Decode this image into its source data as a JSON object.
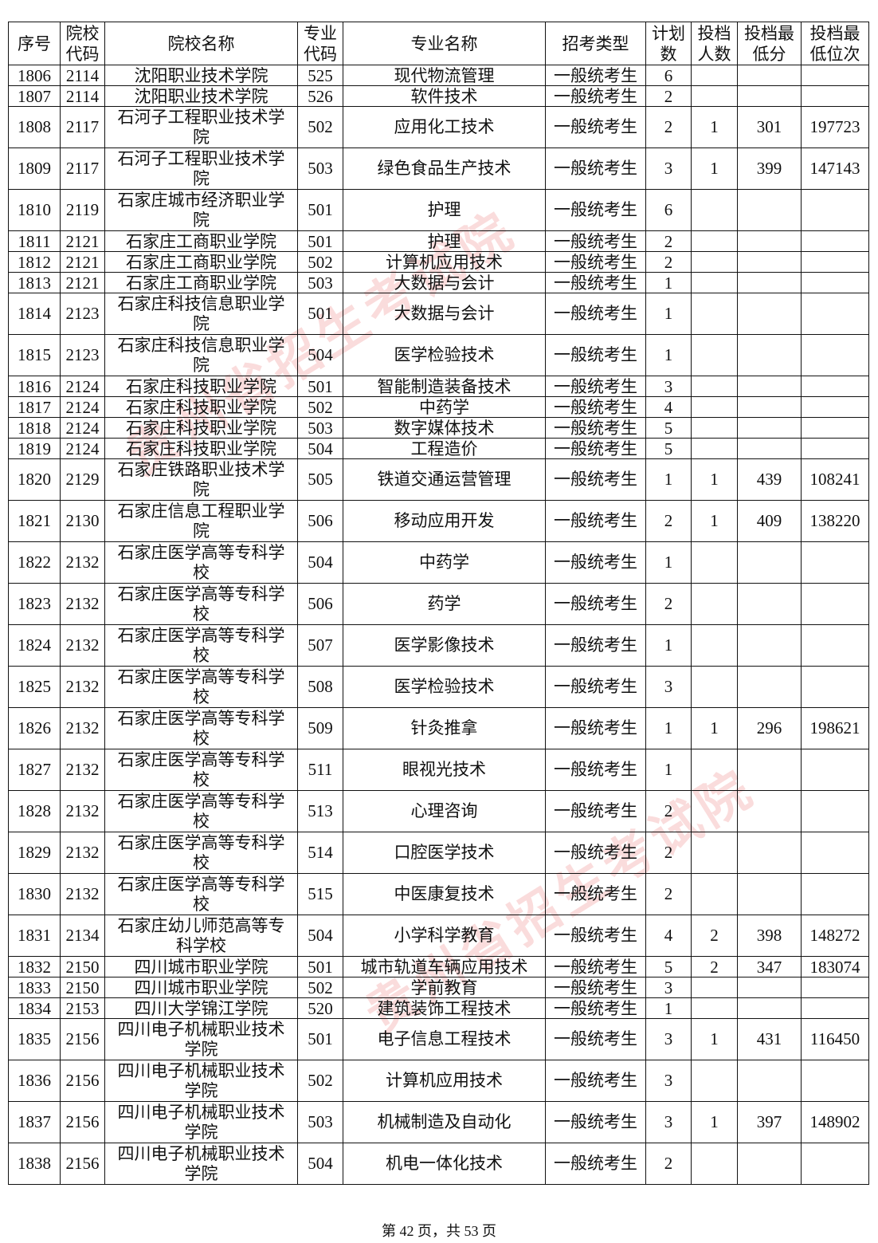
{
  "table": {
    "headers": [
      "序号",
      "院校代码",
      "院校名称",
      "专业代码",
      "专业名称",
      "招考类型",
      "计划数",
      "投档人数",
      "投档最低分",
      "投档最低位次"
    ],
    "rows": [
      [
        "1806",
        "2114",
        "沈阳职业技术学院",
        "525",
        "现代物流管理",
        "一般统考生",
        "6",
        "",
        "",
        ""
      ],
      [
        "1807",
        "2114",
        "沈阳职业技术学院",
        "526",
        "软件技术",
        "一般统考生",
        "2",
        "",
        "",
        ""
      ],
      [
        "1808",
        "2117",
        "石河子工程职业技术学院",
        "502",
        "应用化工技术",
        "一般统考生",
        "2",
        "1",
        "301",
        "197723"
      ],
      [
        "1809",
        "2117",
        "石河子工程职业技术学院",
        "503",
        "绿色食品生产技术",
        "一般统考生",
        "3",
        "1",
        "399",
        "147143"
      ],
      [
        "1810",
        "2119",
        "石家庄城市经济职业学院",
        "501",
        "护理",
        "一般统考生",
        "6",
        "",
        "",
        ""
      ],
      [
        "1811",
        "2121",
        "石家庄工商职业学院",
        "501",
        "护理",
        "一般统考生",
        "2",
        "",
        "",
        ""
      ],
      [
        "1812",
        "2121",
        "石家庄工商职业学院",
        "502",
        "计算机应用技术",
        "一般统考生",
        "2",
        "",
        "",
        ""
      ],
      [
        "1813",
        "2121",
        "石家庄工商职业学院",
        "503",
        "大数据与会计",
        "一般统考生",
        "1",
        "",
        "",
        ""
      ],
      [
        "1814",
        "2123",
        "石家庄科技信息职业学院",
        "501",
        "大数据与会计",
        "一般统考生",
        "1",
        "",
        "",
        ""
      ],
      [
        "1815",
        "2123",
        "石家庄科技信息职业学院",
        "504",
        "医学检验技术",
        "一般统考生",
        "1",
        "",
        "",
        ""
      ],
      [
        "1816",
        "2124",
        "石家庄科技职业学院",
        "501",
        "智能制造装备技术",
        "一般统考生",
        "3",
        "",
        "",
        ""
      ],
      [
        "1817",
        "2124",
        "石家庄科技职业学院",
        "502",
        "中药学",
        "一般统考生",
        "4",
        "",
        "",
        ""
      ],
      [
        "1818",
        "2124",
        "石家庄科技职业学院",
        "503",
        "数字媒体技术",
        "一般统考生",
        "5",
        "",
        "",
        ""
      ],
      [
        "1819",
        "2124",
        "石家庄科技职业学院",
        "504",
        "工程造价",
        "一般统考生",
        "5",
        "",
        "",
        ""
      ],
      [
        "1820",
        "2129",
        "石家庄铁路职业技术学院",
        "505",
        "铁道交通运营管理",
        "一般统考生",
        "1",
        "1",
        "439",
        "108241"
      ],
      [
        "1821",
        "2130",
        "石家庄信息工程职业学院",
        "506",
        "移动应用开发",
        "一般统考生",
        "2",
        "1",
        "409",
        "138220"
      ],
      [
        "1822",
        "2132",
        "石家庄医学高等专科学校",
        "504",
        "中药学",
        "一般统考生",
        "1",
        "",
        "",
        ""
      ],
      [
        "1823",
        "2132",
        "石家庄医学高等专科学校",
        "506",
        "药学",
        "一般统考生",
        "2",
        "",
        "",
        ""
      ],
      [
        "1824",
        "2132",
        "石家庄医学高等专科学校",
        "507",
        "医学影像技术",
        "一般统考生",
        "1",
        "",
        "",
        ""
      ],
      [
        "1825",
        "2132",
        "石家庄医学高等专科学校",
        "508",
        "医学检验技术",
        "一般统考生",
        "3",
        "",
        "",
        ""
      ],
      [
        "1826",
        "2132",
        "石家庄医学高等专科学校",
        "509",
        "针灸推拿",
        "一般统考生",
        "1",
        "1",
        "296",
        "198621"
      ],
      [
        "1827",
        "2132",
        "石家庄医学高等专科学校",
        "511",
        "眼视光技术",
        "一般统考生",
        "1",
        "",
        "",
        ""
      ],
      [
        "1828",
        "2132",
        "石家庄医学高等专科学校",
        "513",
        "心理咨询",
        "一般统考生",
        "2",
        "",
        "",
        ""
      ],
      [
        "1829",
        "2132",
        "石家庄医学高等专科学校",
        "514",
        "口腔医学技术",
        "一般统考生",
        "2",
        "",
        "",
        ""
      ],
      [
        "1830",
        "2132",
        "石家庄医学高等专科学校",
        "515",
        "中医康复技术",
        "一般统考生",
        "2",
        "",
        "",
        ""
      ],
      [
        "1831",
        "2134",
        "石家庄幼儿师范高等专科学校",
        "504",
        "小学科学教育",
        "一般统考生",
        "4",
        "2",
        "398",
        "148272"
      ],
      [
        "1832",
        "2150",
        "四川城市职业学院",
        "501",
        "城市轨道车辆应用技术",
        "一般统考生",
        "5",
        "2",
        "347",
        "183074"
      ],
      [
        "1833",
        "2150",
        "四川城市职业学院",
        "502",
        "学前教育",
        "一般统考生",
        "3",
        "",
        "",
        ""
      ],
      [
        "1834",
        "2153",
        "四川大学锦江学院",
        "520",
        "建筑装饰工程技术",
        "一般统考生",
        "1",
        "",
        "",
        ""
      ],
      [
        "1835",
        "2156",
        "四川电子机械职业技术学院",
        "501",
        "电子信息工程技术",
        "一般统考生",
        "3",
        "1",
        "431",
        "116450"
      ],
      [
        "1836",
        "2156",
        "四川电子机械职业技术学院",
        "502",
        "计算机应用技术",
        "一般统考生",
        "3",
        "",
        "",
        ""
      ],
      [
        "1837",
        "2156",
        "四川电子机械职业技术学院",
        "503",
        "机械制造及自动化",
        "一般统考生",
        "3",
        "1",
        "397",
        "148902"
      ],
      [
        "1838",
        "2156",
        "四川电子机械职业技术学院",
        "504",
        "机电一体化技术",
        "一般统考生",
        "2",
        "",
        "",
        ""
      ]
    ]
  },
  "watermark": "贵州省招生考试院",
  "footer": "第 42 页，共 53 页",
  "colors": {
    "watermark": "#e63c3c"
  }
}
